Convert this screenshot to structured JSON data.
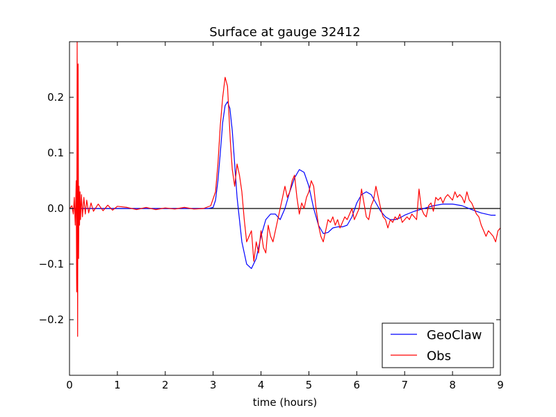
{
  "chart_data": {
    "type": "line",
    "title": "Surface at gauge 32412",
    "xlabel": "time (hours)",
    "ylabel": "",
    "xlim": [
      0,
      9
    ],
    "ylim": [
      -0.3,
      0.3
    ],
    "xticks": [
      {
        "value": 0,
        "label": "0"
      },
      {
        "value": 1,
        "label": "1"
      },
      {
        "value": 2,
        "label": "2"
      },
      {
        "value": 3,
        "label": "3"
      },
      {
        "value": 4,
        "label": "4"
      },
      {
        "value": 5,
        "label": "5"
      },
      {
        "value": 6,
        "label": "6"
      },
      {
        "value": 7,
        "label": "7"
      },
      {
        "value": 8,
        "label": "8"
      },
      {
        "value": 9,
        "label": "9"
      }
    ],
    "yticks": [
      {
        "value": 0.2,
        "label": "0.2"
      },
      {
        "value": 0.1,
        "label": "0.1"
      },
      {
        "value": 0.0,
        "label": "0.0"
      },
      {
        "value": -0.1,
        "label": "−0.1"
      },
      {
        "value": -0.2,
        "label": "−0.2"
      }
    ],
    "grid": false,
    "legend_position": "lower-right",
    "reference_line": {
      "y": 0,
      "color": "#000000"
    },
    "series": [
      {
        "name": "GeoClaw",
        "color": "#0000ff",
        "x": [
          0,
          1,
          2,
          2.9,
          3.0,
          3.05,
          3.1,
          3.15,
          3.2,
          3.25,
          3.3,
          3.35,
          3.4,
          3.45,
          3.5,
          3.6,
          3.7,
          3.8,
          3.9,
          4.0,
          4.1,
          4.2,
          4.3,
          4.4,
          4.5,
          4.6,
          4.7,
          4.8,
          4.9,
          5.0,
          5.1,
          5.2,
          5.3,
          5.4,
          5.5,
          5.6,
          5.7,
          5.8,
          5.9,
          6.0,
          6.1,
          6.2,
          6.3,
          6.4,
          6.5,
          6.6,
          6.7,
          6.8,
          6.9,
          7.0,
          7.2,
          7.4,
          7.6,
          7.8,
          8.0,
          8.2,
          8.4,
          8.6,
          8.8,
          8.9
        ],
        "y": [
          0,
          0,
          0,
          0.0,
          0.002,
          0.015,
          0.05,
          0.1,
          0.155,
          0.185,
          0.192,
          0.18,
          0.14,
          0.08,
          0.02,
          -0.06,
          -0.1,
          -0.108,
          -0.09,
          -0.05,
          -0.02,
          -0.01,
          -0.01,
          -0.02,
          0.0,
          0.03,
          0.055,
          0.07,
          0.065,
          0.04,
          0.0,
          -0.03,
          -0.045,
          -0.043,
          -0.035,
          -0.033,
          -0.033,
          -0.03,
          -0.015,
          0.01,
          0.025,
          0.03,
          0.025,
          0.01,
          -0.005,
          -0.015,
          -0.02,
          -0.02,
          -0.017,
          -0.012,
          -0.005,
          0.0,
          0.005,
          0.008,
          0.008,
          0.005,
          -0.002,
          -0.008,
          -0.012,
          -0.012
        ]
      },
      {
        "name": "Obs",
        "color": "#ff0000",
        "x": [
          0.0,
          0.05,
          0.08,
          0.1,
          0.12,
          0.14,
          0.15,
          0.16,
          0.17,
          0.18,
          0.19,
          0.2,
          0.21,
          0.22,
          0.23,
          0.25,
          0.27,
          0.3,
          0.33,
          0.36,
          0.4,
          0.45,
          0.5,
          0.6,
          0.7,
          0.8,
          0.9,
          1.0,
          1.2,
          1.4,
          1.6,
          1.8,
          2.0,
          2.2,
          2.4,
          2.6,
          2.8,
          2.95,
          3.05,
          3.1,
          3.15,
          3.2,
          3.25,
          3.3,
          3.33,
          3.36,
          3.4,
          3.45,
          3.5,
          3.55,
          3.6,
          3.65,
          3.7,
          3.75,
          3.8,
          3.85,
          3.9,
          3.95,
          4.0,
          4.05,
          4.1,
          4.15,
          4.2,
          4.25,
          4.3,
          4.35,
          4.4,
          4.45,
          4.5,
          4.55,
          4.6,
          4.65,
          4.7,
          4.75,
          4.8,
          4.85,
          4.9,
          4.95,
          5.0,
          5.05,
          5.1,
          5.15,
          5.2,
          5.25,
          5.3,
          5.35,
          5.4,
          5.45,
          5.5,
          5.55,
          5.6,
          5.65,
          5.7,
          5.75,
          5.8,
          5.85,
          5.9,
          5.95,
          6.0,
          6.05,
          6.1,
          6.15,
          6.2,
          6.25,
          6.3,
          6.35,
          6.4,
          6.45,
          6.5,
          6.55,
          6.6,
          6.65,
          6.7,
          6.75,
          6.8,
          6.85,
          6.9,
          6.95,
          7.0,
          7.05,
          7.1,
          7.15,
          7.2,
          7.25,
          7.3,
          7.35,
          7.4,
          7.45,
          7.5,
          7.55,
          7.6,
          7.65,
          7.7,
          7.75,
          7.8,
          7.85,
          7.9,
          7.95,
          8.0,
          8.05,
          8.1,
          8.15,
          8.2,
          8.25,
          8.3,
          8.35,
          8.4,
          8.45,
          8.5,
          8.55,
          8.6,
          8.65,
          8.7,
          8.75,
          8.8,
          8.85,
          8.9,
          8.95,
          9.0
        ],
        "y": [
          0.0,
          0.005,
          -0.01,
          0.02,
          -0.03,
          0.05,
          -0.15,
          0.3,
          -0.23,
          0.26,
          -0.09,
          0.04,
          -0.03,
          0.03,
          -0.02,
          0.025,
          -0.015,
          0.02,
          -0.01,
          0.015,
          -0.008,
          0.01,
          -0.005,
          0.008,
          -0.004,
          0.006,
          -0.003,
          0.004,
          0.002,
          -0.002,
          0.002,
          -0.002,
          0.001,
          -0.001,
          0.002,
          -0.001,
          0.0,
          0.005,
          0.03,
          0.08,
          0.15,
          0.2,
          0.236,
          0.22,
          0.17,
          0.12,
          0.07,
          0.04,
          0.08,
          0.06,
          0.03,
          -0.02,
          -0.06,
          -0.05,
          -0.04,
          -0.095,
          -0.06,
          -0.08,
          -0.04,
          -0.07,
          -0.08,
          -0.03,
          -0.05,
          -0.06,
          -0.04,
          -0.02,
          0.0,
          0.02,
          0.04,
          0.02,
          0.03,
          0.05,
          0.06,
          0.02,
          -0.01,
          0.01,
          0.0,
          0.02,
          0.03,
          0.05,
          0.04,
          0.0,
          -0.03,
          -0.05,
          -0.06,
          -0.04,
          -0.02,
          -0.025,
          -0.015,
          -0.03,
          -0.02,
          -0.035,
          -0.025,
          -0.015,
          -0.02,
          -0.01,
          0.0,
          -0.02,
          -0.01,
          0.0,
          0.035,
          0.01,
          -0.015,
          -0.02,
          0.005,
          0.015,
          0.04,
          0.02,
          0.0,
          -0.015,
          -0.02,
          -0.035,
          -0.02,
          -0.025,
          -0.015,
          -0.02,
          -0.01,
          -0.025,
          -0.02,
          -0.015,
          -0.02,
          -0.01,
          -0.015,
          -0.02,
          0.035,
          0.0,
          -0.01,
          -0.015,
          0.005,
          0.01,
          -0.005,
          0.02,
          0.015,
          0.02,
          0.01,
          0.02,
          0.025,
          0.02,
          0.015,
          0.03,
          0.02,
          0.025,
          0.02,
          0.01,
          0.03,
          0.015,
          0.01,
          0.0,
          -0.01,
          -0.015,
          -0.03,
          -0.04,
          -0.05,
          -0.04,
          -0.045,
          -0.05,
          -0.06,
          -0.04,
          -0.035
        ]
      }
    ]
  }
}
